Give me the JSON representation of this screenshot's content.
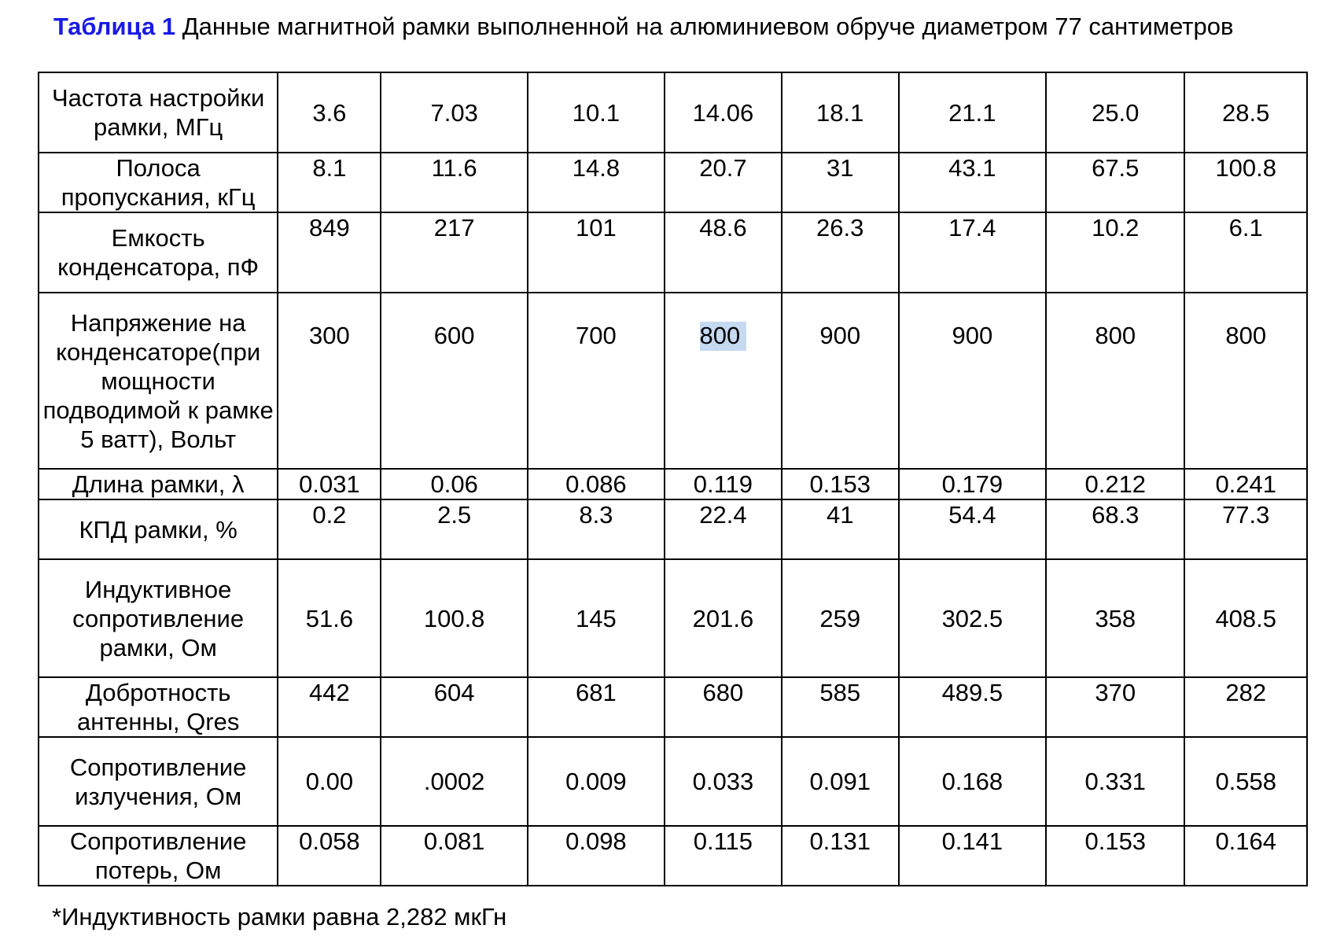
{
  "caption": {
    "label": "Таблица 1",
    "text": "Данные магнитной рамки выполненной на алюминиевом обруче диаметром 77 сантиметров"
  },
  "rows": [
    {
      "param": "Частота настройки рамки, МГц",
      "values": [
        "3.6",
        "7.03",
        "10.1",
        "14.06",
        "18.1",
        "21.1",
        "25.0",
        "28.5"
      ]
    },
    {
      "param": "Полоса пропускания, кГц",
      "values": [
        "8.1",
        "11.6",
        "14.8",
        "20.7",
        "31",
        "43.1",
        "67.5",
        "100.8"
      ]
    },
    {
      "param": "Емкость конденсатора, пФ",
      "values": [
        "849",
        "217",
        "101",
        "48.6",
        "26.3",
        "17.4",
        "10.2",
        "6.1"
      ]
    },
    {
      "param": "Напряжение на конденсаторе(при мощности подводимой к рамке 5 ватт), Вольт",
      "values": [
        "300",
        "600",
        "700",
        "800",
        "900",
        "900",
        "800",
        "800"
      ]
    },
    {
      "param": "Длина рамки, λ",
      "values": [
        "0.031",
        "0.06",
        "0.086",
        "0.119",
        "0.153",
        "0.179",
        "0.212",
        "0.241"
      ]
    },
    {
      "param": "КПД рамки, %",
      "values": [
        "0.2",
        "2.5",
        "8.3",
        "22.4",
        "41",
        "54.4",
        "68.3",
        "77.3"
      ]
    },
    {
      "param": "Индуктивное сопротивление рамки, Ом",
      "values": [
        "51.6",
        "100.8",
        "145",
        "201.6",
        "259",
        "302.5",
        "358",
        "408.5"
      ]
    },
    {
      "param": "Добротность антенны, Qres",
      "values": [
        "442",
        "604",
        "681",
        "680",
        "585",
        "489.5",
        "370",
        "282"
      ]
    },
    {
      "param": "Сопротивление излучения, Ом",
      "values": [
        "0.00",
        ".0002",
        "0.009",
        "0.033",
        "0.091",
        "0.168",
        "0.331",
        "0.558"
      ]
    },
    {
      "param": "Сопротивление потерь, Ом",
      "values": [
        "0.058",
        "0.081",
        "0.098",
        "0.115",
        "0.131",
        "0.141",
        "0.153",
        "0.164"
      ]
    }
  ],
  "footnote": "*Индуктивность рамки равна 2,282 мкГн",
  "colors": {
    "caption_label": "#1a1ae6",
    "selection_highlight": "#c5d9f1"
  }
}
